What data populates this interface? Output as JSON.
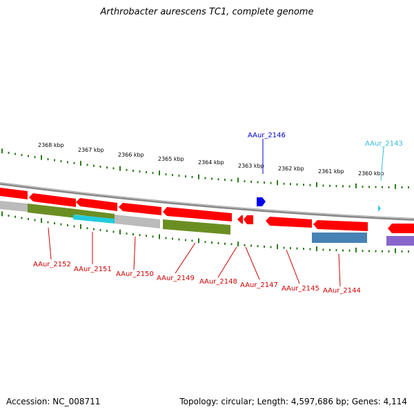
{
  "title": "Arthrobacter aurescens TC1, complete genome",
  "accession_label": "Accession: NC_008711",
  "summary_label": "Topology: circular; Length: 4,597,686 bp; Genes: 4,114",
  "colors": {
    "gene_red": "#ff0000",
    "label_red": "#cc0000",
    "label_blue": "#0000cc",
    "label_cyan": "#33bbdd",
    "backbone": "#888888",
    "tick_green": "#2a7a1a",
    "olive": "#6b8e23",
    "gray": "#bbbbbb",
    "cyan": "#22ccdd",
    "steelblue": "#4682b4",
    "purple": "#8866cc",
    "blue": "#0000ee"
  },
  "scale_ticks": [
    "2368 kbp",
    "2367 kbp",
    "2366 kbp",
    "2365 kbp",
    "2364 kbp",
    "2363 kbp",
    "2362 kbp",
    "2361 kbp",
    "2360 kbp"
  ],
  "gene_labels_top": [
    {
      "text": "AAur_2146",
      "color": "#0000cc"
    },
    {
      "text": "AAur_2143",
      "color": "#33bbdd"
    }
  ],
  "gene_labels_bottom": [
    "AAur_2152",
    "AAur_2151",
    "AAur_2150",
    "AAur_2149",
    "AAur_2148",
    "AAur_2147",
    "AAur_2145",
    "AAur_2144"
  ]
}
